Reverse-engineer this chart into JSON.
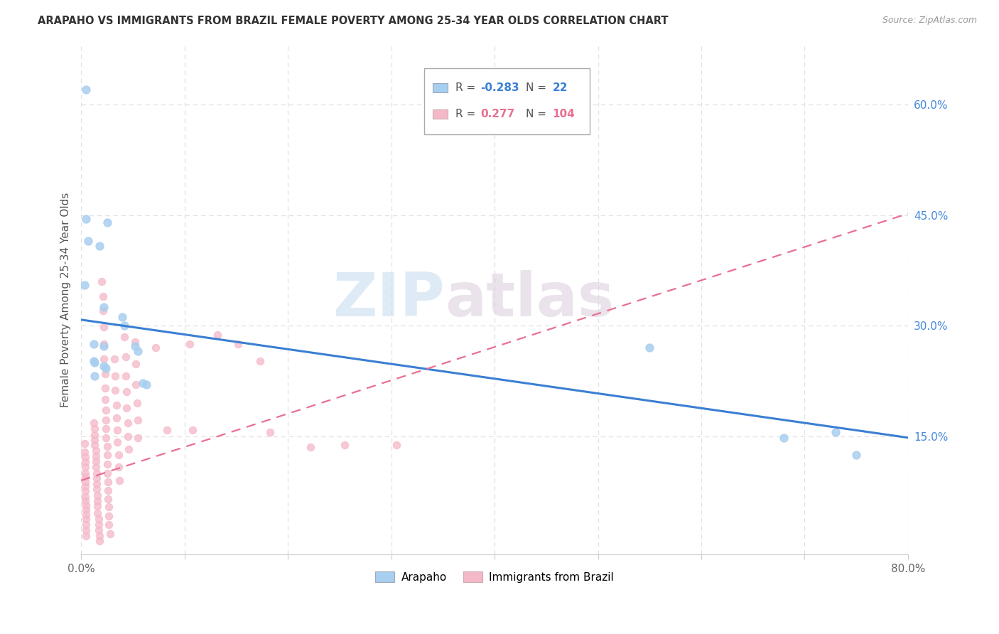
{
  "title": "ARAPAHO VS IMMIGRANTS FROM BRAZIL FEMALE POVERTY AMONG 25-34 YEAR OLDS CORRELATION CHART",
  "source": "Source: ZipAtlas.com",
  "ylabel": "Female Poverty Among 25-34 Year Olds",
  "xlim": [
    0.0,
    0.8
  ],
  "ylim": [
    -0.01,
    0.68
  ],
  "yticks_right": [
    0.15,
    0.3,
    0.45,
    0.6
  ],
  "ytick_right_labels": [
    "15.0%",
    "30.0%",
    "45.0%",
    "60.0%"
  ],
  "background_color": "#ffffff",
  "watermark_zip": "ZIP",
  "watermark_atlas": "atlas",
  "arapaho_color": "#a8cef0",
  "brazil_color": "#f5b8c8",
  "arapaho_line_color": "#3a7fd4",
  "brazil_line_color": "#e87090",
  "grid_color": "#e0e0e0",
  "arapaho_scatter": [
    [
      0.005,
      0.62
    ],
    [
      0.005,
      0.445
    ],
    [
      0.025,
      0.44
    ],
    [
      0.007,
      0.415
    ],
    [
      0.018,
      0.408
    ],
    [
      0.003,
      0.355
    ],
    [
      0.022,
      0.325
    ],
    [
      0.04,
      0.312
    ],
    [
      0.042,
      0.3
    ],
    [
      0.012,
      0.275
    ],
    [
      0.022,
      0.272
    ],
    [
      0.052,
      0.272
    ],
    [
      0.055,
      0.265
    ],
    [
      0.012,
      0.252
    ],
    [
      0.013,
      0.25
    ],
    [
      0.022,
      0.245
    ],
    [
      0.024,
      0.242
    ],
    [
      0.013,
      0.232
    ],
    [
      0.06,
      0.222
    ],
    [
      0.063,
      0.22
    ],
    [
      0.55,
      0.27
    ],
    [
      0.68,
      0.148
    ],
    [
      0.73,
      0.155
    ],
    [
      0.75,
      0.125
    ]
  ],
  "brazil_scatter": [
    [
      0.003,
      0.14
    ],
    [
      0.003,
      0.128
    ],
    [
      0.004,
      0.122
    ],
    [
      0.004,
      0.115
    ],
    [
      0.004,
      0.108
    ],
    [
      0.004,
      0.1
    ],
    [
      0.004,
      0.095
    ],
    [
      0.004,
      0.088
    ],
    [
      0.004,
      0.082
    ],
    [
      0.004,
      0.075
    ],
    [
      0.004,
      0.068
    ],
    [
      0.004,
      0.062
    ],
    [
      0.005,
      0.056
    ],
    [
      0.005,
      0.05
    ],
    [
      0.005,
      0.044
    ],
    [
      0.005,
      0.038
    ],
    [
      0.005,
      0.03
    ],
    [
      0.005,
      0.022
    ],
    [
      0.005,
      0.015
    ],
    [
      0.012,
      0.168
    ],
    [
      0.013,
      0.16
    ],
    [
      0.013,
      0.152
    ],
    [
      0.013,
      0.145
    ],
    [
      0.013,
      0.138
    ],
    [
      0.014,
      0.13
    ],
    [
      0.014,
      0.123
    ],
    [
      0.014,
      0.116
    ],
    [
      0.014,
      0.108
    ],
    [
      0.015,
      0.1
    ],
    [
      0.015,
      0.093
    ],
    [
      0.015,
      0.085
    ],
    [
      0.015,
      0.078
    ],
    [
      0.016,
      0.07
    ],
    [
      0.016,
      0.062
    ],
    [
      0.016,
      0.055
    ],
    [
      0.016,
      0.046
    ],
    [
      0.017,
      0.038
    ],
    [
      0.017,
      0.03
    ],
    [
      0.017,
      0.022
    ],
    [
      0.018,
      0.015
    ],
    [
      0.018,
      0.008
    ],
    [
      0.02,
      0.36
    ],
    [
      0.021,
      0.34
    ],
    [
      0.021,
      0.32
    ],
    [
      0.022,
      0.298
    ],
    [
      0.022,
      0.275
    ],
    [
      0.022,
      0.255
    ],
    [
      0.023,
      0.235
    ],
    [
      0.023,
      0.215
    ],
    [
      0.023,
      0.2
    ],
    [
      0.024,
      0.185
    ],
    [
      0.024,
      0.172
    ],
    [
      0.024,
      0.16
    ],
    [
      0.024,
      0.148
    ],
    [
      0.025,
      0.136
    ],
    [
      0.025,
      0.125
    ],
    [
      0.025,
      0.112
    ],
    [
      0.025,
      0.1
    ],
    [
      0.026,
      0.088
    ],
    [
      0.026,
      0.076
    ],
    [
      0.026,
      0.065
    ],
    [
      0.027,
      0.054
    ],
    [
      0.027,
      0.042
    ],
    [
      0.027,
      0.03
    ],
    [
      0.028,
      0.018
    ],
    [
      0.032,
      0.255
    ],
    [
      0.033,
      0.232
    ],
    [
      0.033,
      0.212
    ],
    [
      0.034,
      0.192
    ],
    [
      0.034,
      0.175
    ],
    [
      0.035,
      0.158
    ],
    [
      0.035,
      0.142
    ],
    [
      0.036,
      0.125
    ],
    [
      0.036,
      0.108
    ],
    [
      0.037,
      0.09
    ],
    [
      0.042,
      0.285
    ],
    [
      0.043,
      0.258
    ],
    [
      0.043,
      0.232
    ],
    [
      0.044,
      0.21
    ],
    [
      0.044,
      0.188
    ],
    [
      0.045,
      0.168
    ],
    [
      0.045,
      0.15
    ],
    [
      0.046,
      0.132
    ],
    [
      0.052,
      0.278
    ],
    [
      0.053,
      0.248
    ],
    [
      0.053,
      0.22
    ],
    [
      0.054,
      0.195
    ],
    [
      0.055,
      0.172
    ],
    [
      0.055,
      0.148
    ],
    [
      0.072,
      0.27
    ],
    [
      0.083,
      0.158
    ],
    [
      0.105,
      0.275
    ],
    [
      0.108,
      0.158
    ],
    [
      0.132,
      0.288
    ],
    [
      0.152,
      0.275
    ],
    [
      0.173,
      0.252
    ],
    [
      0.183,
      0.155
    ],
    [
      0.222,
      0.135
    ],
    [
      0.255,
      0.138
    ],
    [
      0.305,
      0.138
    ]
  ],
  "arapaho_trendline_x": [
    0.0,
    0.8
  ],
  "arapaho_trendline_y": [
    0.308,
    0.148
  ],
  "brazil_trendline_x": [
    0.0,
    0.8
  ],
  "brazil_trendline_y": [
    0.09,
    0.452
  ]
}
